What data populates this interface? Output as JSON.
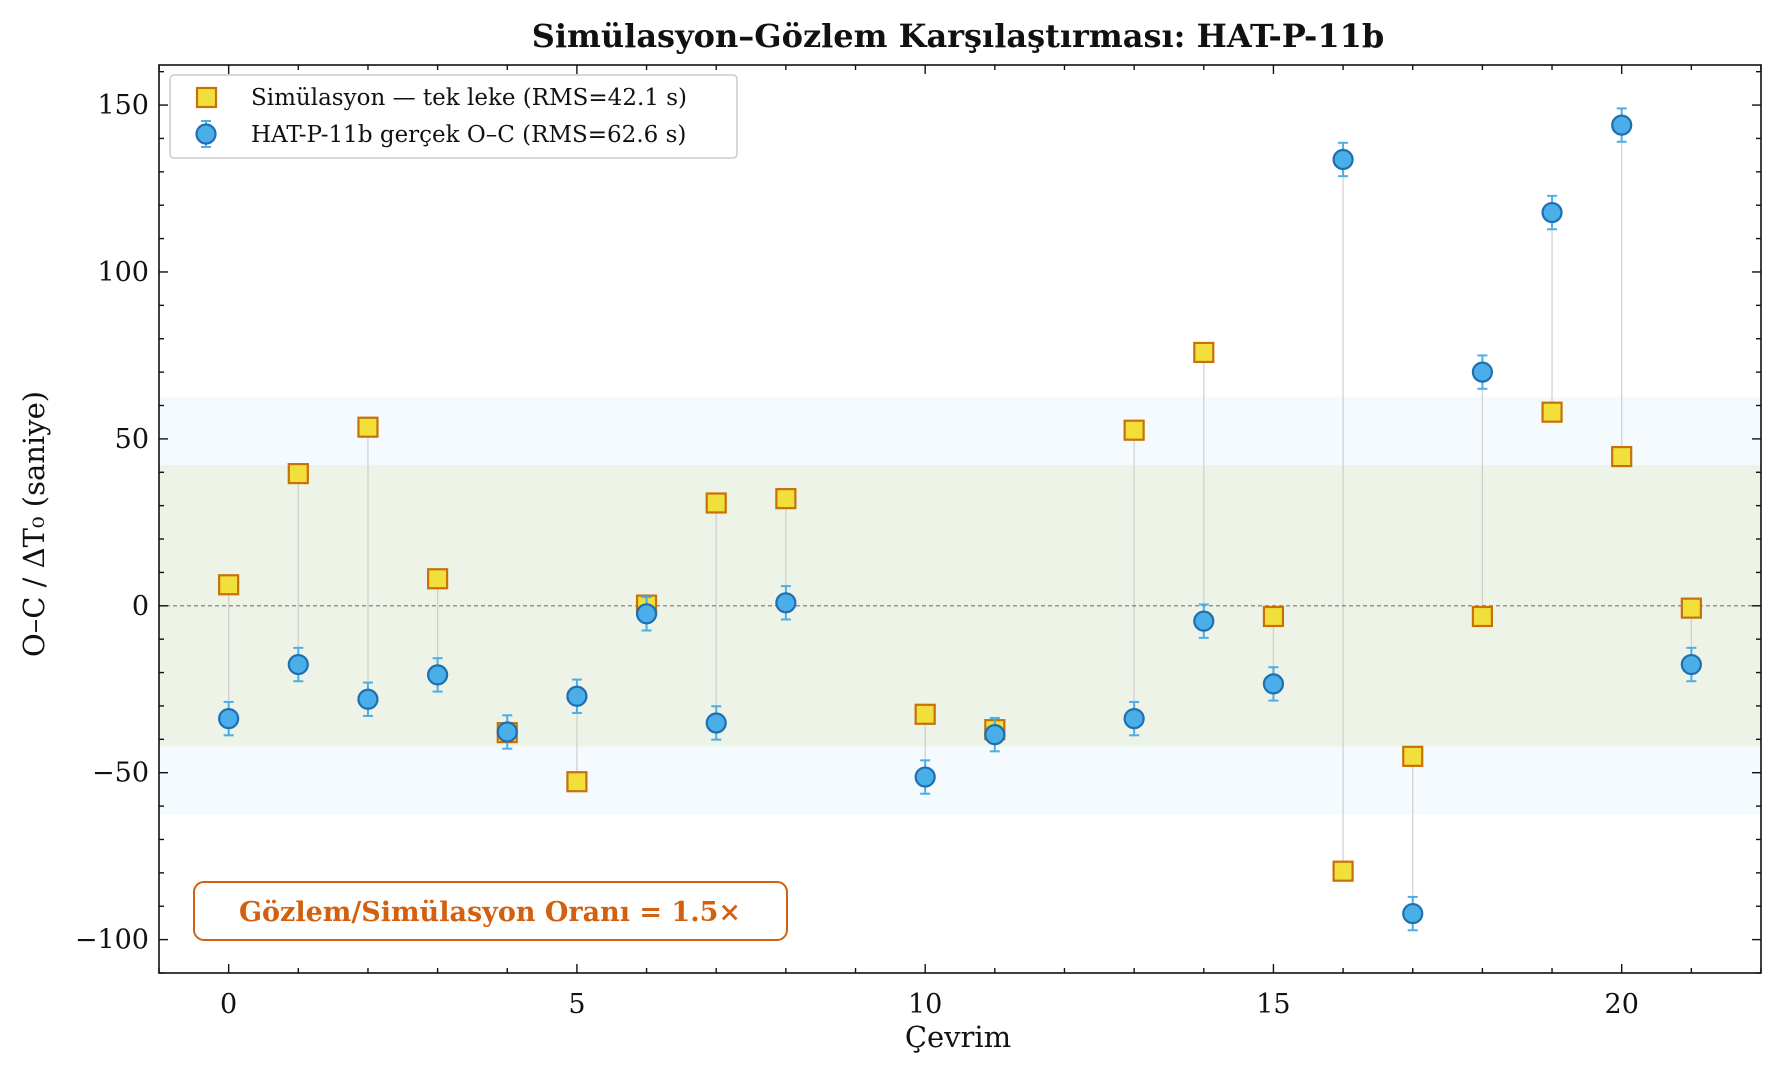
{
  "chart_data": {
    "type": "scatter",
    "title": "Simülasyon–Gözlem Karşılaştırması: HAT-P-11b",
    "xlabel": "Çevrim",
    "ylabel": "O–C / ΔT₀ (saniye)",
    "xlim": [
      -1,
      22
    ],
    "ylim": [
      -110,
      162
    ],
    "xticks": [
      0,
      5,
      10,
      15,
      20
    ],
    "xtick_labels": [
      "0",
      "5",
      "10",
      "15",
      "20"
    ],
    "yticks": [
      -100,
      -50,
      0,
      50,
      100,
      150
    ],
    "ytick_labels": [
      "−100",
      "−50",
      "0",
      "50",
      "100",
      "150"
    ],
    "grid": false,
    "legend_position": "top-left",
    "bands": [
      {
        "rms": 62.6,
        "color": "#cfe8f5"
      },
      {
        "rms": 42.1,
        "color": "#e4eccb"
      }
    ],
    "zero_line": true,
    "series": [
      {
        "name": "Simülasyon — tek leke (RMS=42.1 s)",
        "marker": "square",
        "face_color": "#f2e03a",
        "edge_color": "#c8700a",
        "x": [
          0,
          1,
          2,
          3,
          4,
          5,
          6,
          7,
          8,
          10,
          11,
          13,
          14,
          15,
          16,
          17,
          18,
          19,
          20,
          21
        ],
        "y": [
          6.3,
          39.6,
          53.5,
          8.1,
          -38.0,
          -52.7,
          0.2,
          30.8,
          32.1,
          -32.5,
          -37.1,
          52.6,
          75.9,
          -3.2,
          -79.5,
          -45.1,
          -3.2,
          58.0,
          44.7,
          -0.7
        ]
      },
      {
        "name": "HAT-P-11b gerçek O–C (RMS=62.6 s)",
        "marker": "circle",
        "face_color": "#4aaee8",
        "edge_color": "#1f6fb0",
        "error": 5,
        "x": [
          0,
          1,
          2,
          3,
          4,
          5,
          6,
          7,
          8,
          10,
          11,
          13,
          14,
          15,
          16,
          17,
          18,
          19,
          20,
          21
        ],
        "y": [
          -33.8,
          -17.6,
          -28.0,
          -20.7,
          -37.8,
          -27.1,
          -2.4,
          -35.1,
          0.9,
          -51.3,
          -38.6,
          -33.8,
          -4.6,
          -23.4,
          133.7,
          -92.2,
          70.0,
          117.8,
          144.0,
          -17.6
        ]
      }
    ],
    "annotation": "Gözlem/Simülasyon Oranı = 1.5×",
    "annotation_color": "#d2600e"
  }
}
